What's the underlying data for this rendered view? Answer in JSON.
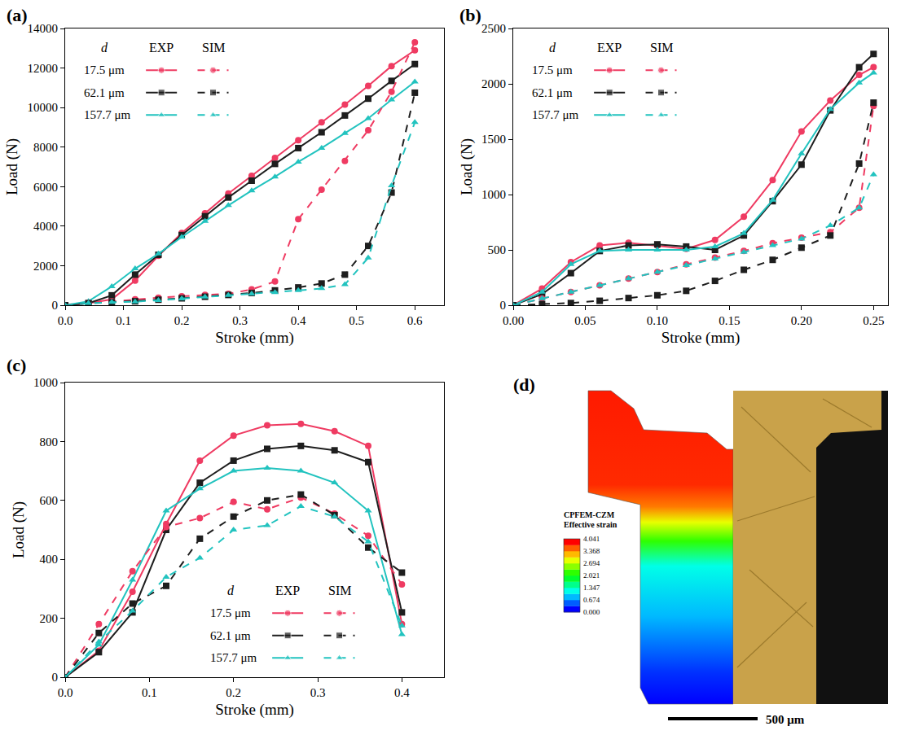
{
  "chart_data": [
    {
      "panel": "(a)",
      "type": "line",
      "x_label": "Stroke (mm)",
      "y_label": "Load (N)",
      "x": [
        0,
        0.04,
        0.08,
        0.12,
        0.16,
        0.2,
        0.24,
        0.28,
        0.32,
        0.36,
        0.4,
        0.44,
        0.48,
        0.52,
        0.56,
        0.6
      ],
      "xlim": [
        0,
        0.65
      ],
      "xticks": [
        {
          "value": 0,
          "label": "0.0"
        },
        0.1,
        0.2,
        0.3,
        0.4,
        0.5,
        0.6
      ],
      "ylim": [
        0,
        14000
      ],
      "yticks": [
        0,
        2000,
        4000,
        6000,
        8000,
        10000,
        12000,
        14000
      ],
      "grid": false,
      "legend": "upper left",
      "legend_title": "d",
      "legend_columns": [
        "EXP",
        "SIM"
      ],
      "series": [
        {
          "name": "17.5 μm",
          "source": "EXP",
          "color": "#ef3b62",
          "marker": "circle",
          "line_style": "solid",
          "values": [
            0,
            100,
            300,
            1250,
            2500,
            3650,
            4650,
            5650,
            6550,
            7450,
            8350,
            9250,
            10150,
            11100,
            12100,
            12900
          ]
        },
        {
          "name": "62.1 μm",
          "source": "EXP",
          "color": "#1e1e1e",
          "marker": "square",
          "line_style": "solid",
          "values": [
            0,
            100,
            500,
            1550,
            2550,
            3550,
            4500,
            5450,
            6300,
            7150,
            7950,
            8750,
            9600,
            10450,
            11350,
            12200
          ]
        },
        {
          "name": "157.7 μm",
          "source": "EXP",
          "color": "#22c3bf",
          "marker": "triangle",
          "line_style": "solid",
          "values": [
            0,
            200,
            950,
            1850,
            2600,
            3450,
            4250,
            5050,
            5800,
            6500,
            7250,
            7950,
            8700,
            9450,
            10400,
            11300
          ]
        },
        {
          "name": "17.5 μm",
          "source": "SIM",
          "color": "#ef3b62",
          "marker": "circle",
          "line_style": "dashed",
          "values": [
            0,
            100,
            200,
            300,
            380,
            450,
            520,
            580,
            800,
            1200,
            4350,
            5850,
            7300,
            8850,
            10800,
            13300
          ]
        },
        {
          "name": "62.1 μm",
          "source": "SIM",
          "color": "#1e1e1e",
          "marker": "square",
          "line_style": "dashed",
          "values": [
            0,
            100,
            150,
            200,
            280,
            350,
            430,
            520,
            620,
            750,
            900,
            1100,
            1550,
            3000,
            5700,
            10750
          ]
        },
        {
          "name": "157.7 μm",
          "source": "SIM",
          "color": "#22c3bf",
          "marker": "triangle",
          "line_style": "dashed",
          "values": [
            0,
            100,
            150,
            180,
            250,
            330,
            420,
            500,
            580,
            650,
            750,
            850,
            1050,
            2400,
            6050,
            9250
          ]
        }
      ]
    },
    {
      "panel": "(b)",
      "type": "line",
      "x_label": "Stroke (mm)",
      "y_label": "Load (N)",
      "x": [
        0,
        0.02,
        0.04,
        0.06,
        0.08,
        0.1,
        0.12,
        0.14,
        0.16,
        0.18,
        0.2,
        0.22,
        0.24,
        0.25
      ],
      "xlim": [
        0,
        0.26
      ],
      "xticks": [
        {
          "value": 0,
          "label": "0.00"
        },
        0.05,
        {
          "value": 0.1,
          "label": "0.10"
        },
        0.15,
        {
          "value": 0.2,
          "label": "0.20"
        },
        0.25
      ],
      "ylim": [
        0,
        2500
      ],
      "yticks": [
        0,
        500,
        1000,
        1500,
        2000,
        2500
      ],
      "grid": false,
      "legend": "upper left",
      "legend_title": "d",
      "legend_columns": [
        "EXP",
        "SIM"
      ],
      "series": [
        {
          "name": "17.5 μm",
          "source": "EXP",
          "color": "#ef3b62",
          "marker": "circle",
          "line_style": "solid",
          "values": [
            0,
            150,
            390,
            540,
            565,
            540,
            510,
            590,
            800,
            1130,
            1570,
            1850,
            2080,
            2150
          ]
        },
        {
          "name": "62.1 μm",
          "source": "EXP",
          "color": "#1e1e1e",
          "marker": "square",
          "line_style": "solid",
          "values": [
            0,
            100,
            290,
            490,
            540,
            550,
            530,
            500,
            630,
            940,
            1270,
            1760,
            2150,
            2270
          ]
        },
        {
          "name": "157.7 μm",
          "source": "EXP",
          "color": "#22c3bf",
          "marker": "triangle",
          "line_style": "solid",
          "values": [
            0,
            120,
            370,
            490,
            500,
            500,
            500,
            530,
            650,
            950,
            1370,
            1770,
            2010,
            2100
          ]
        },
        {
          "name": "17.5 μm",
          "source": "SIM",
          "color": "#ef3b62",
          "marker": "circle",
          "line_style": "dashed",
          "values": [
            0,
            60,
            120,
            180,
            240,
            300,
            370,
            430,
            490,
            560,
            610,
            660,
            880,
            1800
          ]
        },
        {
          "name": "62.1 μm",
          "source": "SIM",
          "color": "#1e1e1e",
          "marker": "square",
          "line_style": "dashed",
          "values": [
            0,
            10,
            20,
            40,
            65,
            90,
            130,
            220,
            320,
            410,
            520,
            630,
            1280,
            1830
          ]
        },
        {
          "name": "157.7 μm",
          "source": "SIM",
          "color": "#22c3bf",
          "marker": "triangle",
          "line_style": "dashed",
          "values": [
            0,
            60,
            120,
            180,
            240,
            300,
            360,
            420,
            480,
            540,
            600,
            720,
            880,
            1180
          ]
        }
      ]
    },
    {
      "panel": "(c)",
      "type": "line",
      "x_label": "Stroke (mm)",
      "y_label": "Load (N)",
      "x": [
        0,
        0.04,
        0.08,
        0.12,
        0.16,
        0.2,
        0.24,
        0.28,
        0.32,
        0.36,
        0.4
      ],
      "xlim": [
        0,
        0.45
      ],
      "xticks": [
        {
          "value": 0,
          "label": "0.0"
        },
        0.1,
        0.2,
        0.3,
        0.4
      ],
      "ylim": [
        0,
        1000
      ],
      "yticks": [
        0,
        200,
        400,
        600,
        800,
        1000
      ],
      "grid": false,
      "legend": "lower right",
      "legend_title": "d",
      "legend_columns": [
        "EXP",
        "SIM"
      ],
      "series": [
        {
          "name": "17.5 μm",
          "source": "EXP",
          "color": "#ef3b62",
          "marker": "circle",
          "line_style": "solid",
          "values": [
            0,
            90,
            290,
            520,
            735,
            820,
            855,
            860,
            835,
            785,
            180
          ]
        },
        {
          "name": "62.1 μm",
          "source": "EXP",
          "color": "#1e1e1e",
          "marker": "square",
          "line_style": "solid",
          "values": [
            0,
            85,
            220,
            500,
            660,
            735,
            775,
            785,
            770,
            730,
            220
          ]
        },
        {
          "name": "157.7 μm",
          "source": "EXP",
          "color": "#22c3bf",
          "marker": "triangle",
          "line_style": "solid",
          "values": [
            0,
            110,
            330,
            565,
            640,
            700,
            710,
            700,
            660,
            565,
            145
          ]
        },
        {
          "name": "17.5 μm",
          "source": "SIM",
          "color": "#ef3b62",
          "marker": "circle",
          "line_style": "dashed",
          "values": [
            0,
            180,
            360,
            510,
            540,
            595,
            570,
            610,
            555,
            480,
            315
          ]
        },
        {
          "name": "62.1 μm",
          "source": "SIM",
          "color": "#1e1e1e",
          "marker": "square",
          "line_style": "dashed",
          "values": [
            0,
            150,
            250,
            310,
            470,
            545,
            600,
            620,
            550,
            440,
            355
          ]
        },
        {
          "name": "157.7 μm",
          "source": "SIM",
          "color": "#22c3bf",
          "marker": "triangle",
          "line_style": "dashed",
          "values": [
            0,
            120,
            225,
            340,
            405,
            500,
            515,
            580,
            545,
            460,
            175
          ]
        }
      ]
    }
  ],
  "panel_d": {
    "panel": "(d)",
    "colorbar": {
      "title": [
        "CPFEM-CZM",
        "Effective strain"
      ],
      "range": [
        0,
        4.041
      ],
      "ticks": [
        4.041,
        3.368,
        2.694,
        2.021,
        1.347,
        0.674,
        {
          "value": 0,
          "label": "0.000"
        }
      ]
    },
    "scale_bar": "500 μm"
  }
}
